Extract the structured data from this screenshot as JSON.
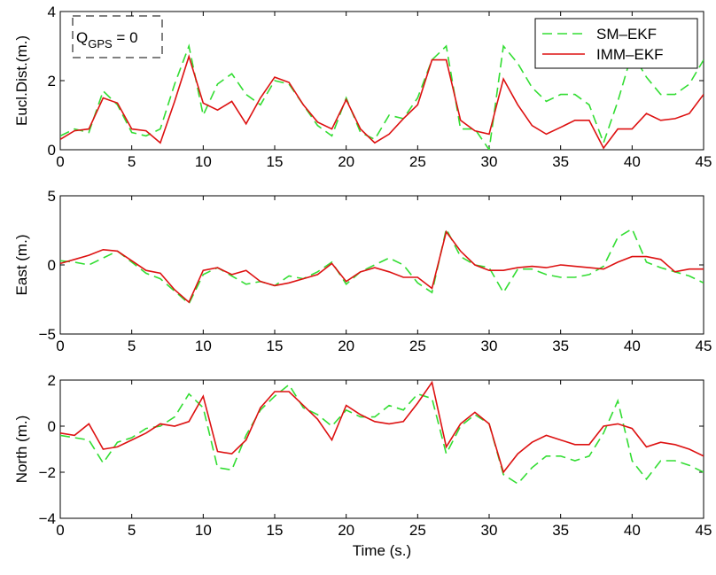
{
  "colors": {
    "sm_ekf": "#33dd33",
    "imm_ekf": "#dd1111",
    "axes": "#000000"
  },
  "chart_data": [
    {
      "type": "line",
      "ylabel": "Eucl.Dist.(m.)",
      "xlabel": "",
      "xlim": [
        0,
        45
      ],
      "ylim": [
        0,
        4
      ],
      "xticks": [
        0,
        5,
        10,
        15,
        20,
        25,
        30,
        35,
        40,
        45
      ],
      "yticks": [
        0,
        2,
        4
      ],
      "annotation": {
        "text_main": "Q",
        "text_sub": "GPS",
        "text_tail": " = 0"
      },
      "legend": {
        "position": "top-right",
        "entries": [
          "SM–EKF",
          "IMM–EKF"
        ]
      },
      "x": [
        0,
        1,
        2,
        3,
        4,
        5,
        6,
        7,
        8,
        9,
        10,
        11,
        12,
        13,
        14,
        15,
        16,
        17,
        18,
        19,
        20,
        21,
        22,
        23,
        24,
        25,
        26,
        27,
        28,
        29,
        30,
        31,
        32,
        33,
        34,
        35,
        36,
        37,
        38,
        39,
        40,
        41,
        42,
        43,
        44,
        45
      ],
      "series": [
        {
          "name": "SM–EKF",
          "style": "dashed",
          "values": [
            0.4,
            0.6,
            0.5,
            1.7,
            1.3,
            0.5,
            0.4,
            0.6,
            1.9,
            3.0,
            1.0,
            1.9,
            2.2,
            1.6,
            1.3,
            2.0,
            1.9,
            1.3,
            0.7,
            0.4,
            1.5,
            0.5,
            0.3,
            1.0,
            0.9,
            1.5,
            2.6,
            3.0,
            0.6,
            0.6,
            0.0,
            3.0,
            2.5,
            1.8,
            1.4,
            1.6,
            1.6,
            1.3,
            0.2,
            1.4,
            2.8,
            2.1,
            1.6,
            1.6,
            1.9,
            2.6
          ]
        },
        {
          "name": "IMM–EKF",
          "style": "solid",
          "values": [
            0.3,
            0.55,
            0.6,
            1.5,
            1.35,
            0.6,
            0.55,
            0.2,
            1.4,
            2.7,
            1.35,
            1.15,
            1.4,
            0.75,
            1.5,
            2.1,
            1.95,
            1.3,
            0.8,
            0.6,
            1.45,
            0.6,
            0.2,
            0.45,
            0.9,
            1.3,
            2.6,
            2.6,
            0.85,
            0.55,
            0.45,
            2.05,
            1.3,
            0.7,
            0.45,
            0.65,
            0.85,
            0.85,
            0.05,
            0.6,
            0.6,
            1.05,
            0.85,
            0.9,
            1.05,
            1.6
          ]
        }
      ]
    },
    {
      "type": "line",
      "ylabel": "East (m.)",
      "xlabel": "",
      "xlim": [
        0,
        45
      ],
      "ylim": [
        -5,
        5
      ],
      "xticks": [
        0,
        5,
        10,
        15,
        20,
        25,
        30,
        35,
        40,
        45
      ],
      "yticks": [
        -5,
        0,
        5
      ],
      "x": [
        0,
        1,
        2,
        3,
        4,
        5,
        6,
        7,
        8,
        9,
        10,
        11,
        12,
        13,
        14,
        15,
        16,
        17,
        18,
        19,
        20,
        21,
        22,
        23,
        24,
        25,
        26,
        27,
        28,
        29,
        30,
        31,
        32,
        33,
        34,
        35,
        36,
        37,
        38,
        39,
        40,
        41,
        42,
        43,
        44,
        45
      ],
      "series": [
        {
          "name": "SM–EKF",
          "style": "dashed",
          "values": [
            0.3,
            0.2,
            0.0,
            0.5,
            1.0,
            0.2,
            -0.6,
            -1.0,
            -1.9,
            -2.8,
            -0.7,
            -0.2,
            -0.8,
            -1.4,
            -1.2,
            -1.5,
            -0.8,
            -1.0,
            -0.5,
            0.2,
            -1.4,
            -0.5,
            0.0,
            0.5,
            0.0,
            -1.3,
            -2.0,
            2.6,
            0.6,
            0.0,
            -0.2,
            -2.0,
            -0.3,
            -0.3,
            -0.7,
            -0.9,
            -0.9,
            -0.7,
            -0.1,
            2.0,
            2.6,
            0.2,
            -0.2,
            -0.5,
            -0.8,
            -1.3
          ]
        },
        {
          "name": "IMM–EKF",
          "style": "solid",
          "values": [
            0.1,
            0.4,
            0.7,
            1.1,
            1.0,
            0.3,
            -0.4,
            -0.6,
            -1.8,
            -2.7,
            -0.4,
            -0.2,
            -0.7,
            -0.4,
            -1.2,
            -1.5,
            -1.3,
            -1.0,
            -0.7,
            0.1,
            -1.2,
            -0.5,
            -0.2,
            -0.5,
            -0.9,
            -0.9,
            -1.7,
            2.4,
            1.0,
            0.0,
            -0.4,
            -0.4,
            -0.2,
            -0.1,
            -0.2,
            0.0,
            -0.1,
            -0.2,
            -0.3,
            0.2,
            0.6,
            0.6,
            0.4,
            -0.5,
            -0.3,
            -0.3
          ]
        }
      ]
    },
    {
      "type": "line",
      "ylabel": "North (m.)",
      "xlabel": "Time (s.)",
      "xlim": [
        0,
        45
      ],
      "ylim": [
        -4,
        2
      ],
      "xticks": [
        0,
        5,
        10,
        15,
        20,
        25,
        30,
        35,
        40,
        45
      ],
      "yticks": [
        -4,
        -2,
        0,
        2
      ],
      "x": [
        0,
        1,
        2,
        3,
        4,
        5,
        6,
        7,
        8,
        9,
        10,
        11,
        12,
        13,
        14,
        15,
        16,
        17,
        18,
        19,
        20,
        21,
        22,
        23,
        24,
        25,
        26,
        27,
        28,
        29,
        30,
        31,
        32,
        33,
        34,
        35,
        36,
        37,
        38,
        39,
        40,
        41,
        42,
        43,
        44,
        45
      ],
      "series": [
        {
          "name": "SM–EKF",
          "style": "dashed",
          "values": [
            -0.4,
            -0.5,
            -0.6,
            -1.6,
            -0.7,
            -0.5,
            -0.1,
            0.0,
            0.4,
            1.4,
            0.8,
            -1.8,
            -1.9,
            -0.4,
            0.7,
            1.3,
            1.8,
            0.8,
            0.5,
            0.0,
            0.7,
            0.4,
            0.4,
            0.9,
            0.7,
            1.4,
            1.2,
            -1.2,
            0.0,
            0.5,
            0.1,
            -2.1,
            -2.5,
            -1.8,
            -1.3,
            -1.3,
            -1.5,
            -1.3,
            -0.3,
            1.1,
            -1.5,
            -2.3,
            -1.5,
            -1.5,
            -1.7,
            -2.0
          ]
        },
        {
          "name": "IMM–EKF",
          "style": "solid",
          "values": [
            -0.3,
            -0.4,
            0.1,
            -1.0,
            -0.9,
            -0.6,
            -0.3,
            0.1,
            0.0,
            0.2,
            1.3,
            -1.1,
            -1.2,
            -0.6,
            0.8,
            1.5,
            1.5,
            0.9,
            0.3,
            -0.6,
            0.9,
            0.5,
            0.2,
            0.1,
            0.2,
            1.0,
            1.9,
            -0.9,
            0.1,
            0.6,
            0.1,
            -2.0,
            -1.2,
            -0.7,
            -0.4,
            -0.6,
            -0.8,
            -0.8,
            0.0,
            0.1,
            -0.1,
            -0.9,
            -0.7,
            -0.8,
            -1.0,
            -1.3
          ]
        }
      ]
    }
  ]
}
